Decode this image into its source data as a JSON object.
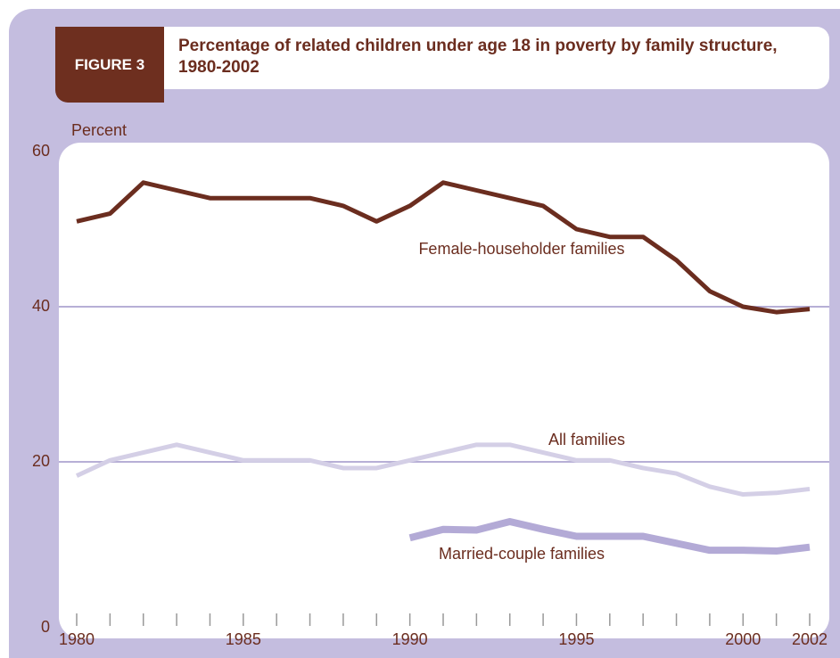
{
  "chart_data": {
    "type": "line",
    "figure_label": "FIGURE 3",
    "title": "Percentage of related children under age 18 in poverty by family structure, 1980-2002",
    "y_label": "Percent",
    "x": [
      1980,
      1981,
      1982,
      1983,
      1984,
      1985,
      1986,
      1987,
      1988,
      1989,
      1990,
      1991,
      1992,
      1993,
      1994,
      1995,
      1996,
      1997,
      1998,
      1999,
      2000,
      2001,
      2002
    ],
    "series": [
      {
        "name": "Female-householder families",
        "color": "#6b2d1f",
        "width": 5,
        "values": [
          51,
          52,
          56,
          55,
          54,
          54,
          54,
          54,
          53,
          51,
          53,
          56,
          55,
          54,
          53,
          50,
          49,
          49,
          46,
          42,
          40,
          39.3,
          39.7
        ]
      },
      {
        "name": "All families",
        "color": "#d4cfe6",
        "width": 5,
        "values": [
          18.2,
          20.2,
          21.2,
          22.2,
          21.2,
          20.2,
          20.2,
          20.2,
          19.2,
          19.2,
          20.2,
          21.2,
          22.2,
          22.2,
          21.2,
          20.2,
          20.2,
          19.2,
          18.5,
          16.8,
          15.8,
          16,
          16.5
        ]
      },
      {
        "name": "Married-couple families",
        "color": "#b3aad6",
        "width": 8,
        "values": [
          null,
          null,
          null,
          null,
          null,
          null,
          null,
          null,
          null,
          null,
          10.2,
          11.3,
          11.2,
          12.3,
          11.3,
          10.4,
          10.4,
          10.4,
          9.5,
          8.6,
          8.6,
          8.5,
          9
        ]
      }
    ],
    "xlim": [
      1980,
      2002
    ],
    "xticks": [
      1980,
      1985,
      1990,
      1995,
      2000,
      2002
    ],
    "ylim": [
      0,
      60
    ],
    "yticks": [
      0,
      20,
      40,
      60
    ],
    "grid": true
  }
}
